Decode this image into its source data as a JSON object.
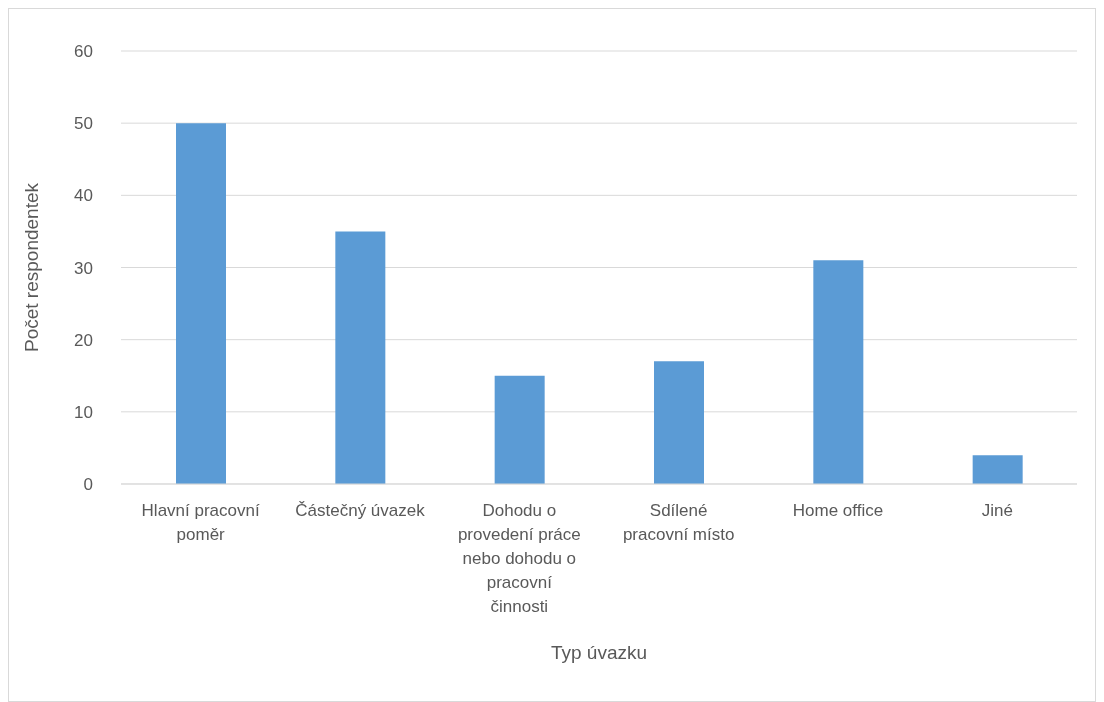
{
  "chart_data": {
    "type": "bar",
    "xlabel": "Typ úvazku",
    "ylabel": "Počet respondentek",
    "categories": [
      "Hlavní pracovní poměr",
      "Částečný úvazek",
      "Dohodu o provedení práce nebo dohodu o pracovní činnosti",
      "Sdílené pracovní místo",
      "Home office",
      "Jiné"
    ],
    "values": [
      50,
      35,
      15,
      17,
      31,
      4
    ],
    "color": "#5b9bd5",
    "ylim": [
      0,
      60
    ],
    "yticks": [
      0,
      10,
      20,
      30,
      40,
      50,
      60
    ],
    "grid": "y",
    "legend": false
  }
}
